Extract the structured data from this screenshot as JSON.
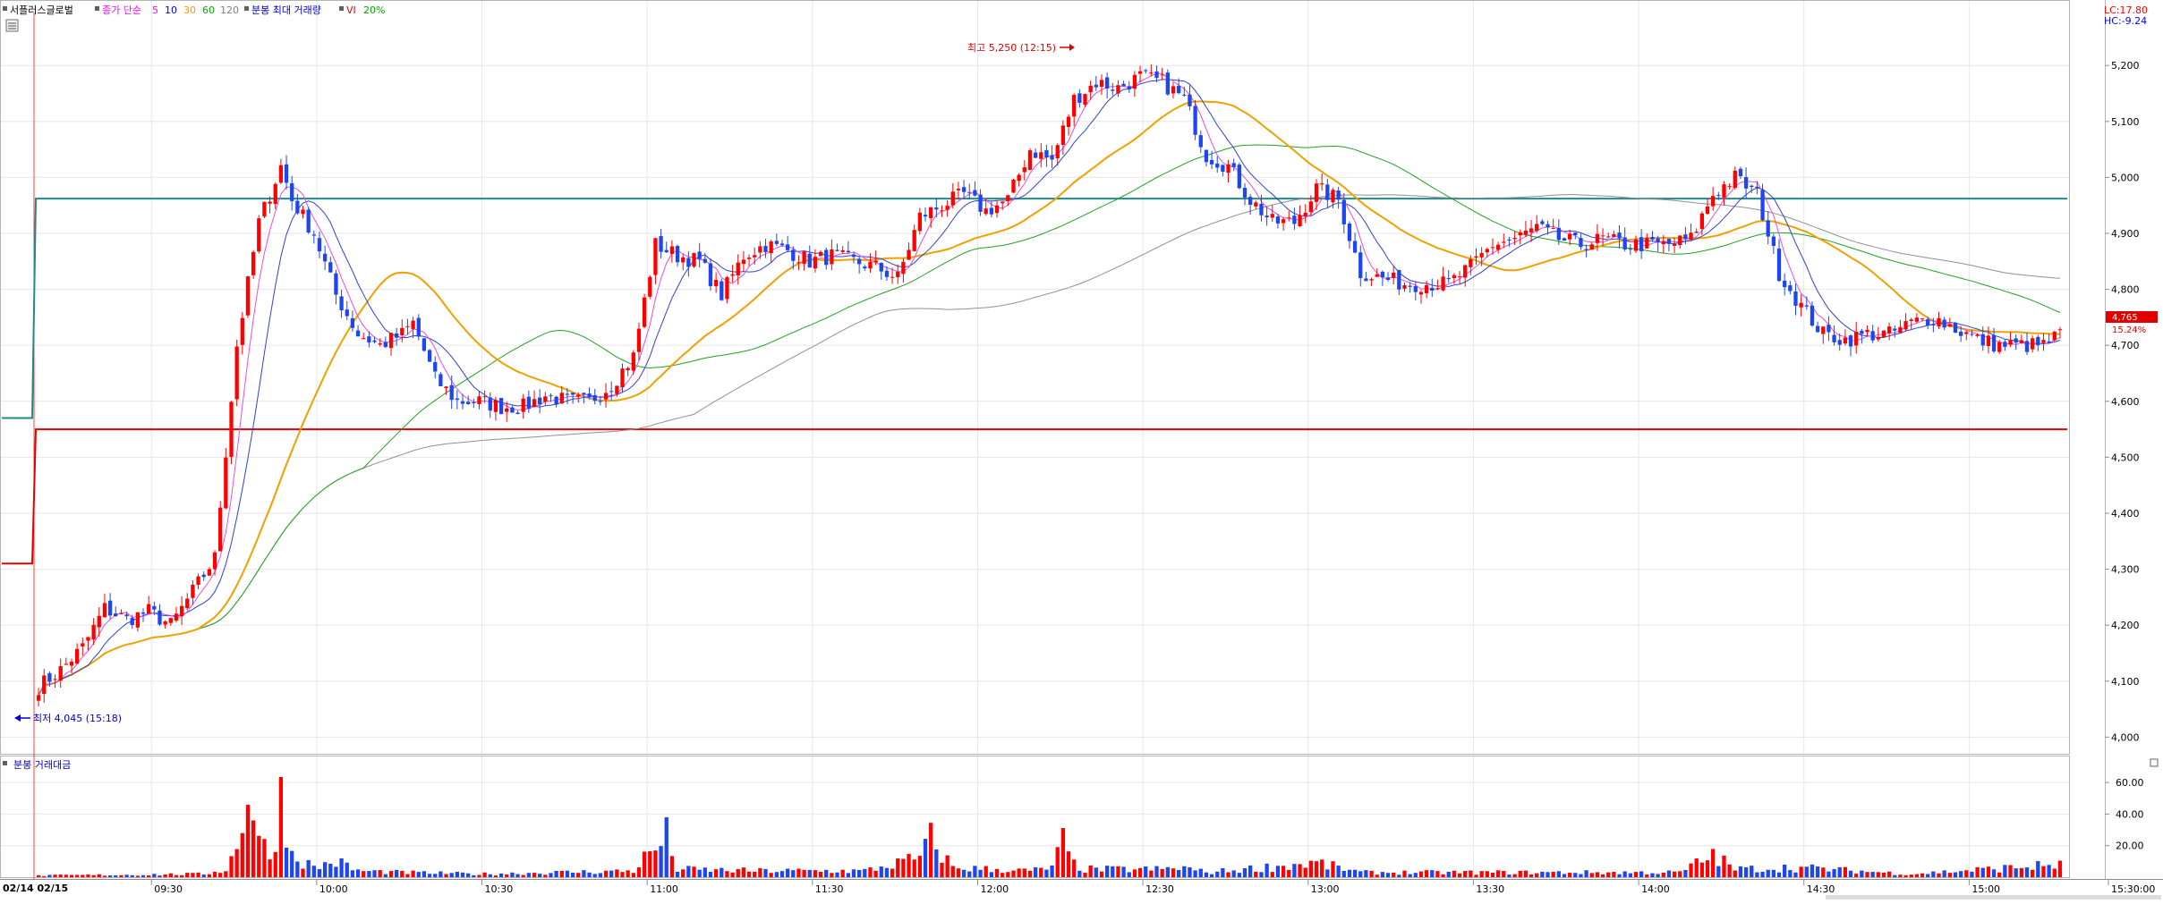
{
  "legend": {
    "symbol": "서플러스글로벌",
    "close_label": "종가 단순",
    "ma_periods": [
      "5",
      "10",
      "30",
      "60",
      "120"
    ],
    "ma_colors": [
      "#0000cc",
      "#ff9900",
      "#00aa00",
      "#808080",
      "#808080"
    ],
    "period_colors": [
      "#ff00ff",
      "#0000cc",
      "#ff9900",
      "#00aa00",
      "#808080"
    ],
    "max_volume_label": "분봉 최대 거래량",
    "vi_label": "VI",
    "vi_pct": "20%"
  },
  "corner": {
    "lc": "LC:17.80",
    "hc": "HC:-9.24"
  },
  "annotations": {
    "high": "최고 5,250 (12:15)",
    "low": "최저 4,045 (15:18)",
    "current_price": "4,765",
    "current_pct": "15.24%"
  },
  "volume_panel": {
    "title": "분봉 거래대금"
  },
  "colors": {
    "up": "#ff0000",
    "down": "#1e46f0",
    "vi_line": "#1f8a8a",
    "limit_line": "#e00000",
    "grid": "#e6e6e6"
  },
  "chart_data": {
    "type": "candlestick",
    "price_axis": {
      "ticks": [
        "5,200",
        "5,100",
        "5,000",
        "4,900",
        "4,800",
        "4,700",
        "4,600",
        "4,500",
        "4,400",
        "4,300",
        "4,200",
        "4,100",
        "4,000"
      ],
      "ylim": [
        3975,
        5285
      ]
    },
    "volume_axis": {
      "ticks": [
        "60.00",
        "40.00",
        "20.00"
      ],
      "ylim": [
        0,
        64
      ]
    },
    "time_axis": {
      "range_label": "02/14 02/15",
      "ticks": [
        "09:30",
        "10:00",
        "10:30",
        "11:00",
        "11:30",
        "12:00",
        "12:30",
        "13:00",
        "13:30",
        "14:00",
        "14:30",
        "15:00",
        "15:30:00"
      ]
    },
    "vi_static_price": 4962,
    "limit_price": 4550,
    "prev_session": {
      "vi_price": 4570,
      "limit_price": 4310
    },
    "price_anchors": [
      [
        0,
        4090
      ],
      [
        4,
        4120
      ],
      [
        8,
        4160
      ],
      [
        12,
        4230
      ],
      [
        16,
        4210
      ],
      [
        20,
        4225
      ],
      [
        24,
        4200
      ],
      [
        28,
        4260
      ],
      [
        32,
        4320
      ],
      [
        36,
        4700
      ],
      [
        40,
        4920
      ],
      [
        44,
        5020
      ],
      [
        46,
        4960
      ],
      [
        50,
        4900
      ],
      [
        54,
        4790
      ],
      [
        58,
        4720
      ],
      [
        62,
        4700
      ],
      [
        66,
        4720
      ],
      [
        68,
        4740
      ],
      [
        72,
        4640
      ],
      [
        76,
        4600
      ],
      [
        80,
        4600
      ],
      [
        84,
        4590
      ],
      [
        88,
        4590
      ],
      [
        92,
        4610
      ],
      [
        96,
        4600
      ],
      [
        100,
        4600
      ],
      [
        104,
        4630
      ],
      [
        108,
        4680
      ],
      [
        112,
        4880
      ],
      [
        116,
        4860
      ],
      [
        120,
        4850
      ],
      [
        124,
        4790
      ],
      [
        128,
        4860
      ],
      [
        132,
        4880
      ],
      [
        136,
        4870
      ],
      [
        140,
        4850
      ],
      [
        144,
        4860
      ],
      [
        148,
        4850
      ],
      [
        152,
        4840
      ],
      [
        156,
        4820
      ],
      [
        160,
        4930
      ],
      [
        164,
        4950
      ],
      [
        168,
        4970
      ],
      [
        172,
        4940
      ],
      [
        176,
        4960
      ],
      [
        180,
        5050
      ],
      [
        184,
        5030
      ],
      [
        188,
        5140
      ],
      [
        192,
        5170
      ],
      [
        196,
        5160
      ],
      [
        200,
        5180
      ],
      [
        204,
        5170
      ],
      [
        208,
        5140
      ],
      [
        212,
        5040
      ],
      [
        216,
        5020
      ],
      [
        220,
        4960
      ],
      [
        224,
        4920
      ],
      [
        228,
        4920
      ],
      [
        232,
        4980
      ],
      [
        236,
        4960
      ],
      [
        240,
        4830
      ],
      [
        244,
        4820
      ],
      [
        248,
        4810
      ],
      [
        252,
        4810
      ],
      [
        256,
        4810
      ],
      [
        260,
        4840
      ],
      [
        264,
        4880
      ],
      [
        268,
        4890
      ],
      [
        272,
        4910
      ],
      [
        276,
        4890
      ],
      [
        280,
        4880
      ],
      [
        284,
        4890
      ],
      [
        288,
        4880
      ],
      [
        292,
        4880
      ],
      [
        296,
        4880
      ],
      [
        300,
        4890
      ],
      [
        304,
        4970
      ],
      [
        308,
        5000
      ],
      [
        312,
        4970
      ],
      [
        316,
        4830
      ],
      [
        320,
        4770
      ],
      [
        324,
        4720
      ],
      [
        328,
        4710
      ],
      [
        332,
        4720
      ],
      [
        336,
        4720
      ],
      [
        340,
        4740
      ],
      [
        344,
        4750
      ],
      [
        348,
        4730
      ],
      [
        352,
        4710
      ],
      [
        356,
        4700
      ],
      [
        360,
        4700
      ],
      [
        364,
        4700
      ],
      [
        367,
        4720
      ]
    ],
    "volume_anchors": [
      [
        0,
        1
      ],
      [
        30,
        2
      ],
      [
        34,
        5
      ],
      [
        36,
        18
      ],
      [
        38,
        60
      ],
      [
        40,
        25
      ],
      [
        42,
        12
      ],
      [
        44,
        50
      ],
      [
        46,
        15
      ],
      [
        50,
        6
      ],
      [
        54,
        10
      ],
      [
        58,
        4
      ],
      [
        66,
        3
      ],
      [
        80,
        2
      ],
      [
        108,
        4
      ],
      [
        110,
        12
      ],
      [
        112,
        18
      ],
      [
        114,
        26
      ],
      [
        116,
        5
      ],
      [
        130,
        4
      ],
      [
        150,
        4
      ],
      [
        160,
        12
      ],
      [
        162,
        24
      ],
      [
        166,
        6
      ],
      [
        180,
        4
      ],
      [
        184,
        6
      ],
      [
        186,
        22
      ],
      [
        188,
        8
      ],
      [
        190,
        5
      ],
      [
        204,
        5
      ],
      [
        208,
        6
      ],
      [
        212,
        3
      ],
      [
        232,
        9
      ],
      [
        240,
        3
      ],
      [
        288,
        3
      ],
      [
        298,
        3
      ],
      [
        304,
        14
      ],
      [
        308,
        5
      ],
      [
        316,
        6
      ],
      [
        320,
        6
      ],
      [
        340,
        2
      ],
      [
        367,
        8
      ]
    ],
    "n_bars": 368
  }
}
